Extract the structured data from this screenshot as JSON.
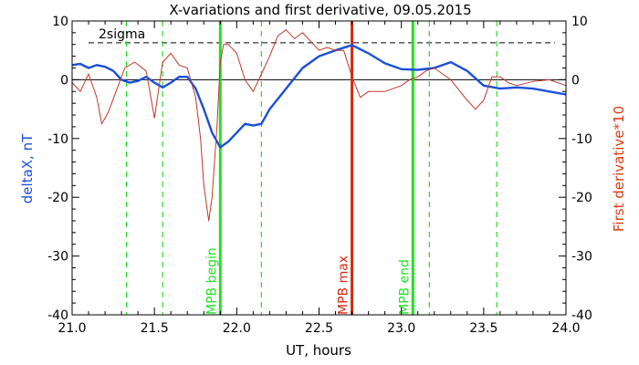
{
  "chart_data": {
    "type": "line",
    "title": "X-variations and first derivative, 09.05.2015",
    "xlabel": "UT, hours",
    "ylabel_left": "deltaX, nT",
    "ylabel_right": "First derivative*10",
    "xlim": [
      21.0,
      24.0
    ],
    "ylim_left": [
      -40,
      10
    ],
    "ylim_right": [
      -40,
      10
    ],
    "x_ticks": [
      21.0,
      21.5,
      22.0,
      22.5,
      23.0,
      23.5,
      24.0
    ],
    "x_tick_labels": [
      "21.0",
      "21.5",
      "22.0",
      "22.5",
      "23.0",
      "23.5",
      "24.0"
    ],
    "y_ticks": [
      10,
      0,
      -10,
      -20,
      -30,
      -40
    ],
    "y_tick_labels_left": [
      "10",
      "0",
      "-10",
      "-20",
      "-30",
      "-40"
    ],
    "y_tick_labels_right": [
      "10",
      "0",
      "-10",
      "-20",
      "-30",
      "-40"
    ],
    "grid": false,
    "zero_line": 0,
    "sigma_label": "2sigma",
    "sigma_level": 6.3,
    "colors": {
      "deltaX": "#1a50d8",
      "derivative": "#c0392b",
      "mpb_max": "#d42a10",
      "mpb_bounds": "#22e022",
      "ylabel_left": "#1a50d8",
      "ylabel_right": "#e03a10"
    },
    "series": [
      {
        "axis": "left",
        "x": [
          21.0,
          21.05,
          21.1,
          21.15,
          21.2,
          21.25,
          21.3,
          21.35,
          21.4,
          21.45,
          21.5,
          21.55,
          21.6,
          21.65,
          21.7,
          21.75,
          21.8,
          21.85,
          21.9,
          21.95,
          22.0,
          22.05,
          22.1,
          22.15,
          22.2,
          22.3,
          22.4,
          22.5,
          22.6,
          22.7,
          22.8,
          22.9,
          23.0,
          23.1,
          23.2,
          23.3,
          23.4,
          23.5,
          23.6,
          23.7,
          23.8,
          23.9,
          24.0
        ],
        "y": [
          2.5,
          2.7,
          2.0,
          2.5,
          2.2,
          1.5,
          0.0,
          -0.5,
          -0.2,
          0.5,
          -0.5,
          -1.3,
          -0.5,
          0.5,
          0.5,
          -1.5,
          -5.0,
          -9.0,
          -11.5,
          -10.5,
          -9.0,
          -7.5,
          -7.8,
          -7.5,
          -5.0,
          -1.5,
          2.0,
          4.0,
          5.0,
          5.9,
          4.5,
          2.8,
          1.8,
          1.7,
          2.0,
          3.0,
          1.5,
          -1.0,
          -1.5,
          -1.3,
          -1.5,
          -2.0,
          -2.5
        ]
      },
      {
        "axis": "right",
        "x": [
          21.0,
          21.05,
          21.1,
          21.15,
          21.18,
          21.22,
          21.28,
          21.32,
          21.38,
          21.45,
          21.5,
          21.55,
          21.6,
          21.65,
          21.7,
          21.75,
          21.78,
          21.8,
          21.83,
          21.85,
          21.88,
          21.9,
          21.92,
          21.95,
          22.0,
          22.05,
          22.1,
          22.15,
          22.2,
          22.25,
          22.3,
          22.35,
          22.4,
          22.45,
          22.5,
          22.55,
          22.6,
          22.65,
          22.7,
          22.75,
          22.8,
          22.9,
          23.0,
          23.05,
          23.1,
          23.15,
          23.2,
          23.3,
          23.4,
          23.45,
          23.5,
          23.55,
          23.6,
          23.65,
          23.7,
          23.8,
          23.9,
          24.0
        ],
        "y": [
          -0.5,
          -2.0,
          1.0,
          -3.0,
          -7.5,
          -5.5,
          -1.0,
          2.0,
          3.0,
          1.5,
          -6.5,
          3.0,
          4.5,
          2.5,
          2.0,
          -3.0,
          -10.0,
          -18.0,
          -24.0,
          -20.0,
          -8.0,
          3.0,
          6.0,
          6.0,
          4.5,
          0.0,
          -2.0,
          1.0,
          4.0,
          7.5,
          8.5,
          7.0,
          8.0,
          6.5,
          5.0,
          5.5,
          5.0,
          5.0,
          0.5,
          -3.0,
          -2.0,
          -2.0,
          -1.0,
          0.0,
          0.5,
          1.5,
          2.0,
          0.0,
          -3.5,
          -5.0,
          -3.5,
          0.5,
          0.5,
          -0.5,
          -1.0,
          -0.3,
          0.0,
          -1.0
        ]
      }
    ],
    "vlines": [
      {
        "x": 21.33,
        "style": "dashed",
        "color_key": "mpb_bounds"
      },
      {
        "x": 21.55,
        "style": "dashed",
        "color_key": "mpb_bounds"
      },
      {
        "x": 21.9,
        "style": "solid",
        "color_key": "mpb_bounds",
        "label": "MPB begin"
      },
      {
        "x": 22.15,
        "style": "dashed",
        "color_key": "mpb_bounds"
      },
      {
        "x": 22.7,
        "style": "solid",
        "color_key": "mpb_max",
        "label": "MPB max"
      },
      {
        "x": 23.07,
        "style": "solid",
        "color_key": "mpb_bounds",
        "label": "MPB end"
      },
      {
        "x": 23.17,
        "style": "dashed",
        "color_key": "mpb_bounds"
      },
      {
        "x": 23.58,
        "style": "dashed",
        "color_key": "mpb_bounds"
      }
    ]
  }
}
